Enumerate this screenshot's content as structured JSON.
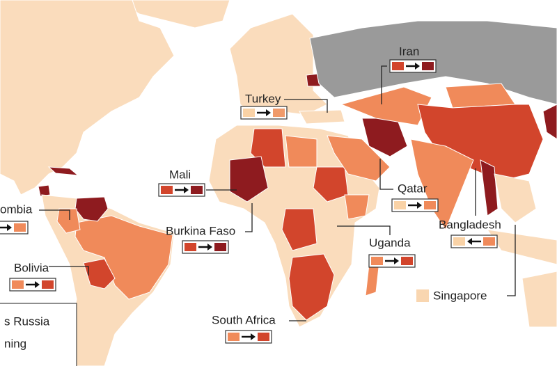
{
  "labels": [
    {
      "name": "Iran",
      "from_color": "#d2452c",
      "to_color": "#8e1b1f",
      "arrow": "right"
    },
    {
      "name": "Turkey",
      "from_color": "#f9d2a6",
      "to_color": "#f09a6a",
      "arrow": "right"
    },
    {
      "name": "Mali",
      "from_color": "#d2452c",
      "to_color": "#8e1b1f",
      "arrow": "right"
    },
    {
      "name": "ombia",
      "from_color": "#d2452c",
      "to_color": "#f08a5a",
      "arrow": "right"
    },
    {
      "name": "Burkina Faso",
      "from_color": "#d2452c",
      "to_color": "#8e1b1f",
      "arrow": "right"
    },
    {
      "name": "Qatar",
      "from_color": "#f9d2a6",
      "to_color": "#f08a5a",
      "arrow": "right"
    },
    {
      "name": "Bangladesh",
      "from_color": "#f9d2a6",
      "to_color": "#f08a5a",
      "arrow": "left"
    },
    {
      "name": "Uganda",
      "from_color": "#f08a5a",
      "to_color": "#d2452c",
      "arrow": "right"
    },
    {
      "name": "Bolivia",
      "from_color": "#f08a5a",
      "to_color": "#d2452c",
      "arrow": "right"
    },
    {
      "name": "South Africa",
      "from_color": "#f08a5a",
      "to_color": "#d2452c",
      "arrow": "right"
    }
  ],
  "key": {
    "label": "Singapore",
    "color": "#f9d6b0"
  },
  "legend": {
    "lines": [
      "s Russia",
      "ning"
    ]
  }
}
